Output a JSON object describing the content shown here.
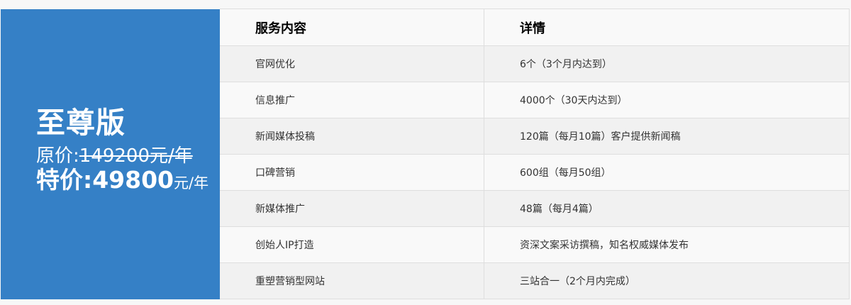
{
  "plan": {
    "title": "至尊版",
    "original_label": "原价:",
    "original_price": "149200元/年",
    "special_label": "特价:",
    "special_price": "49800",
    "special_unit": "元/年",
    "accent_color": "#3580c6"
  },
  "table": {
    "headers": [
      "服务内容",
      "详情"
    ],
    "rows": [
      [
        "官网优化",
        "6个（3个月内达到）"
      ],
      [
        "信息推广",
        "4000个（30天内达到）"
      ],
      [
        "新闻媒体投稿",
        "120篇（每月10篇）客户提供新闻稿"
      ],
      [
        "口碑营销",
        "600组（每月50组）"
      ],
      [
        "新媒体推广",
        "48篇（每月4篇）"
      ],
      [
        "创始人IP打造",
        "资深文案采访撰稿，知名权威媒体发布"
      ],
      [
        "重塑营销型网站",
        "三站合一（2个月内完成）"
      ]
    ]
  }
}
